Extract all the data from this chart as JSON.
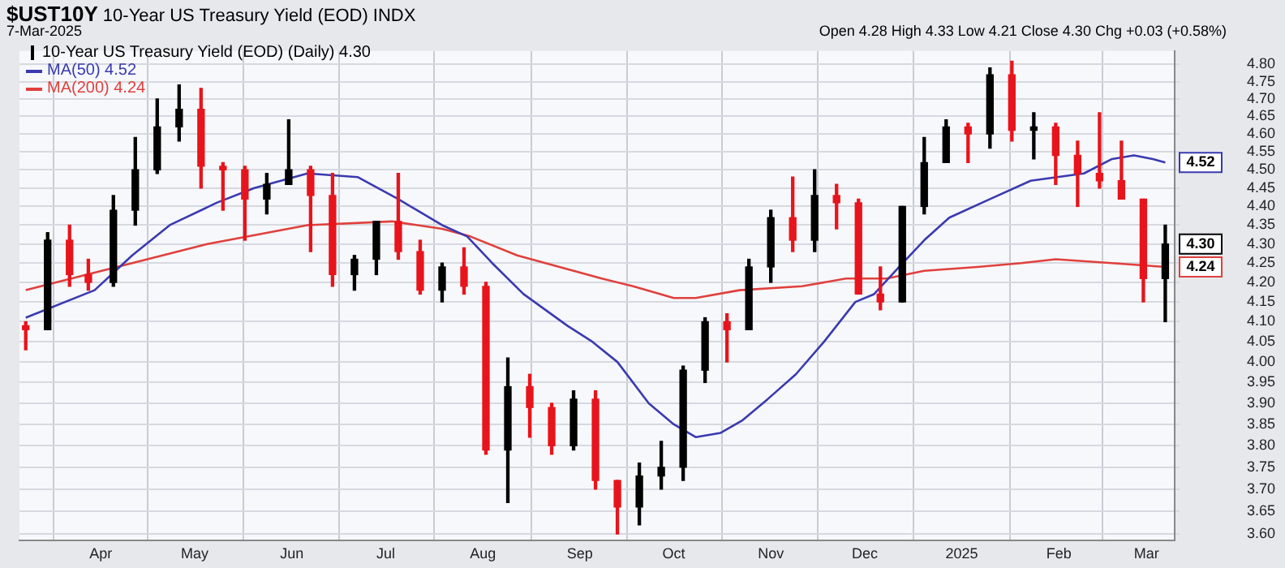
{
  "chart_data": {
    "type": "candlestick",
    "title": "$UST10Y",
    "subtitle": "10-Year US Treasury Yield (EOD) INDX",
    "annotations": [
      "7-Mar-2025",
      "Open 4.28 High 4.33 Low 4.21 Close 4.30 Chg +0.03 (+0.58%)"
    ],
    "log": true,
    "grid": true,
    "legend": "top left",
    "xlim": [
      "2024-03-06",
      "2025-03-10"
    ],
    "xticks": [
      {
        "value": "2024-04-01",
        "label": "Apr"
      },
      {
        "value": "2024-05-01",
        "label": "May"
      },
      {
        "value": "2024-06-01",
        "label": "Jun"
      },
      {
        "value": "2024-07-01",
        "label": "Jul"
      },
      {
        "value": "2024-08-01",
        "label": "Aug"
      },
      {
        "value": "2024-09-01",
        "label": "Sep"
      },
      {
        "value": "2024-10-01",
        "label": "Oct"
      },
      {
        "value": "2024-11-01",
        "label": "Nov"
      },
      {
        "value": "2024-12-01",
        "label": "Dec"
      },
      {
        "value": "2025-01-01",
        "label": "2025"
      },
      {
        "value": "2025-02-01",
        "label": "Feb"
      },
      {
        "value": "2025-03-01",
        "label": "Mar"
      }
    ],
    "ylim": [
      3.585,
      4.84
    ],
    "yticks": [
      {
        "value": 3.6,
        "label": "3.60"
      },
      {
        "value": 3.65,
        "label": "3.65"
      },
      {
        "value": 3.7,
        "label": "3.70"
      },
      {
        "value": 3.75,
        "label": "3.75"
      },
      {
        "value": 3.8,
        "label": "3.80"
      },
      {
        "value": 3.85,
        "label": "3.85"
      },
      {
        "value": 3.9,
        "label": "3.90"
      },
      {
        "value": 3.95,
        "label": "3.95"
      },
      {
        "value": 4.0,
        "label": "4.00"
      },
      {
        "value": 4.05,
        "label": "4.05"
      },
      {
        "value": 4.1,
        "label": "4.10"
      },
      {
        "value": 4.15,
        "label": "4.15"
      },
      {
        "value": 4.2,
        "label": "4.20"
      },
      {
        "value": 4.25,
        "label": "4.25"
      },
      {
        "value": 4.3,
        "label": "4.30"
      },
      {
        "value": 4.35,
        "label": "4.35"
      },
      {
        "value": 4.4,
        "label": "4.40"
      },
      {
        "value": 4.45,
        "label": "4.45"
      },
      {
        "value": 4.5,
        "label": "4.50"
      },
      {
        "value": 4.55,
        "label": "4.55"
      },
      {
        "value": 4.6,
        "label": "4.60"
      },
      {
        "value": 4.65,
        "label": "4.65"
      },
      {
        "value": 4.7,
        "label": "4.70"
      },
      {
        "value": 4.75,
        "label": "4.75"
      },
      {
        "value": 4.8,
        "label": "4.80"
      }
    ],
    "series": [
      {
        "type": "candlestick",
        "name": "10-Year US Treasury Yield (EOD) (Daily) 4.30",
        "color": "#000000",
        "value_labels": [
          null,
          null,
          null,
          null,
          null,
          null,
          null,
          null,
          null,
          null,
          null,
          null,
          null,
          null,
          null,
          null,
          null,
          null,
          null,
          null,
          null,
          null,
          null,
          null,
          null,
          null,
          null,
          null,
          null,
          null,
          null,
          null,
          null,
          null,
          null,
          null,
          null,
          null,
          null,
          null,
          null,
          null,
          null,
          null,
          null,
          null,
          null,
          null,
          null,
          null,
          null,
          null,
          "4.30"
        ],
        "x": [
          "2024-03-08",
          "2024-03-15",
          "2024-03-22",
          "2024-03-28",
          "2024-04-05",
          "2024-04-12",
          "2024-04-19",
          "2024-04-26",
          "2024-05-03",
          "2024-05-10",
          "2024-05-17",
          "2024-05-24",
          "2024-05-31",
          "2024-06-07",
          "2024-06-14",
          "2024-06-21",
          "2024-06-28",
          "2024-07-05",
          "2024-07-12",
          "2024-07-19",
          "2024-07-26",
          "2024-08-02",
          "2024-08-09",
          "2024-08-16",
          "2024-08-23",
          "2024-08-30",
          "2024-09-06",
          "2024-09-13",
          "2024-09-20",
          "2024-09-27",
          "2024-10-04",
          "2024-10-11",
          "2024-10-18",
          "2024-10-25",
          "2024-11-01",
          "2024-11-08",
          "2024-11-15",
          "2024-11-22",
          "2024-11-29",
          "2024-12-06",
          "2024-12-13",
          "2024-12-20",
          "2024-12-27",
          "2025-01-03",
          "2025-01-10",
          "2025-01-17",
          "2025-01-24",
          "2025-01-31",
          "2025-02-07",
          "2025-02-14",
          "2025-02-21",
          "2025-02-28",
          "2025-03-07"
        ],
        "ohlc": [
          [
            4.09,
            4.1,
            4.03,
            4.08
          ],
          [
            4.08,
            4.33,
            4.08,
            4.31
          ],
          [
            4.31,
            4.35,
            4.19,
            4.22
          ],
          [
            4.22,
            4.26,
            4.18,
            4.2
          ],
          [
            4.2,
            4.43,
            4.19,
            4.39
          ],
          [
            4.39,
            4.59,
            4.35,
            4.5
          ],
          [
            4.5,
            4.7,
            4.49,
            4.62
          ],
          [
            4.62,
            4.74,
            4.58,
            4.67
          ],
          [
            4.67,
            4.73,
            4.45,
            4.51
          ],
          [
            4.51,
            4.52,
            4.39,
            4.5
          ],
          [
            4.5,
            4.51,
            4.31,
            4.42
          ],
          [
            4.42,
            4.49,
            4.38,
            4.46
          ],
          [
            4.46,
            4.64,
            4.46,
            4.5
          ],
          [
            4.5,
            4.51,
            4.28,
            4.43
          ],
          [
            4.43,
            4.49,
            4.19,
            4.22
          ],
          [
            4.22,
            4.27,
            4.18,
            4.26
          ],
          [
            4.26,
            4.36,
            4.22,
            4.36
          ],
          [
            4.36,
            4.49,
            4.26,
            4.28
          ],
          [
            4.28,
            4.31,
            4.17,
            4.18
          ],
          [
            4.18,
            4.25,
            4.15,
            4.24
          ],
          [
            4.24,
            4.29,
            4.17,
            4.19
          ],
          [
            4.19,
            4.2,
            3.78,
            3.79
          ],
          [
            3.79,
            4.01,
            3.67,
            3.94
          ],
          [
            3.94,
            3.97,
            3.82,
            3.89
          ],
          [
            3.89,
            3.9,
            3.78,
            3.8
          ],
          [
            3.8,
            3.93,
            3.79,
            3.91
          ],
          [
            3.91,
            3.93,
            3.7,
            3.72
          ],
          [
            3.72,
            3.72,
            3.6,
            3.66
          ],
          [
            3.66,
            3.76,
            3.62,
            3.73
          ],
          [
            3.73,
            3.81,
            3.7,
            3.75
          ],
          [
            3.75,
            3.99,
            3.72,
            3.98
          ],
          [
            3.98,
            4.11,
            3.95,
            4.1
          ],
          [
            4.1,
            4.12,
            4.0,
            4.08
          ],
          [
            4.08,
            4.26,
            4.08,
            4.24
          ],
          [
            4.24,
            4.39,
            4.2,
            4.37
          ],
          [
            4.37,
            4.48,
            4.28,
            4.31
          ],
          [
            4.31,
            4.5,
            4.28,
            4.43
          ],
          [
            4.43,
            4.46,
            4.34,
            4.41
          ],
          [
            4.41,
            4.42,
            4.17,
            4.17
          ],
          [
            4.17,
            4.24,
            4.13,
            4.15
          ],
          [
            4.15,
            4.4,
            4.15,
            4.4
          ],
          [
            4.4,
            4.59,
            4.38,
            4.52
          ],
          [
            4.52,
            4.64,
            4.52,
            4.62
          ],
          [
            4.62,
            4.63,
            4.52,
            4.6
          ],
          [
            4.6,
            4.79,
            4.56,
            4.77
          ],
          [
            4.77,
            4.81,
            4.58,
            4.61
          ],
          [
            4.61,
            4.66,
            4.53,
            4.62
          ],
          [
            4.62,
            4.63,
            4.46,
            4.54
          ],
          [
            4.54,
            4.58,
            4.4,
            4.49
          ],
          [
            4.49,
            4.66,
            4.45,
            4.47
          ],
          [
            4.47,
            4.58,
            4.42,
            4.42
          ],
          [
            4.42,
            4.42,
            4.15,
            4.21
          ],
          [
            4.21,
            4.35,
            4.1,
            4.3
          ]
        ],
        "colors": [
          "#e8141c",
          "#000000",
          "#e8141c",
          "#e8141c",
          "#000000",
          "#000000",
          "#000000",
          "#000000",
          "#e8141c",
          "#e8141c",
          "#e8141c",
          "#000000",
          "#000000",
          "#e8141c",
          "#e8141c",
          "#000000",
          "#000000",
          "#e8141c",
          "#e8141c",
          "#000000",
          "#e8141c",
          "#e8141c",
          "#000000",
          "#e8141c",
          "#e8141c",
          "#000000",
          "#e8141c",
          "#e8141c",
          "#000000",
          "#000000",
          "#000000",
          "#000000",
          "#e8141c",
          "#000000",
          "#000000",
          "#e8141c",
          "#000000",
          "#e8141c",
          "#e8141c",
          "#e8141c",
          "#000000",
          "#000000",
          "#000000",
          "#e8141c",
          "#000000",
          "#e8141c",
          "#000000",
          "#e8141c",
          "#e8141c",
          "#e8141c",
          "#e8141c",
          "#e8141c",
          "#000000"
        ]
      },
      {
        "type": "line",
        "name": "MA(50) 4.52",
        "color": "#3a3ab0",
        "x": [
          "2024-03-08",
          "2024-03-30",
          "2024-04-11",
          "2024-04-23",
          "2024-05-08",
          "2024-05-20",
          "2024-06-06",
          "2024-06-22",
          "2024-07-05",
          "2024-07-19",
          "2024-07-27",
          "2024-08-04",
          "2024-08-14",
          "2024-08-28",
          "2024-09-05",
          "2024-09-13",
          "2024-09-23",
          "2024-10-01",
          "2024-10-08",
          "2024-10-16",
          "2024-10-23",
          "2024-10-31",
          "2024-11-09",
          "2024-11-18",
          "2024-11-28",
          "2024-12-04",
          "2024-12-12",
          "2024-12-20",
          "2024-12-28",
          "2025-01-10",
          "2025-01-23",
          "2025-02-09",
          "2025-02-18",
          "2025-02-25",
          "2025-03-03",
          "2025-03-07"
        ],
        "values": [
          4.11,
          4.18,
          4.27,
          4.35,
          4.41,
          4.45,
          4.49,
          4.48,
          4.42,
          4.35,
          4.32,
          4.25,
          4.17,
          4.09,
          4.05,
          4.0,
          3.9,
          3.85,
          3.82,
          3.83,
          3.86,
          3.91,
          3.97,
          4.05,
          4.15,
          4.17,
          4.24,
          4.31,
          4.37,
          4.42,
          4.47,
          4.49,
          4.53,
          4.54,
          4.53,
          4.52
        ],
        "value_labels": [
          null,
          null,
          null,
          null,
          null,
          null,
          null,
          null,
          null,
          null,
          null,
          null,
          null,
          null,
          null,
          null,
          null,
          null,
          null,
          null,
          null,
          null,
          null,
          null,
          null,
          null,
          null,
          null,
          null,
          null,
          null,
          null,
          null,
          null,
          null,
          "4.52"
        ]
      },
      {
        "type": "line",
        "name": "MA(200) 4.24",
        "color": "#e0403c",
        "x": [
          "2024-03-08",
          "2024-04-11",
          "2024-05-05",
          "2024-06-06",
          "2024-07-03",
          "2024-07-19",
          "2024-07-28",
          "2024-08-12",
          "2024-08-30",
          "2024-09-08",
          "2024-09-18",
          "2024-10-01",
          "2024-10-08",
          "2024-10-22",
          "2024-11-11",
          "2024-11-25",
          "2024-12-08",
          "2024-12-20",
          "2025-01-06",
          "2025-01-20",
          "2025-01-31",
          "2025-02-18",
          "2025-03-07"
        ],
        "values": [
          4.18,
          4.25,
          4.3,
          4.35,
          4.36,
          4.34,
          4.32,
          4.27,
          4.23,
          4.21,
          4.19,
          4.16,
          4.16,
          4.18,
          4.19,
          4.21,
          4.21,
          4.23,
          4.24,
          4.25,
          4.26,
          4.25,
          4.24
        ],
        "value_labels": [
          null,
          null,
          null,
          null,
          null,
          null,
          null,
          null,
          null,
          null,
          null,
          null,
          null,
          null,
          null,
          null,
          null,
          null,
          null,
          null,
          null,
          null,
          "4.24"
        ]
      }
    ]
  }
}
